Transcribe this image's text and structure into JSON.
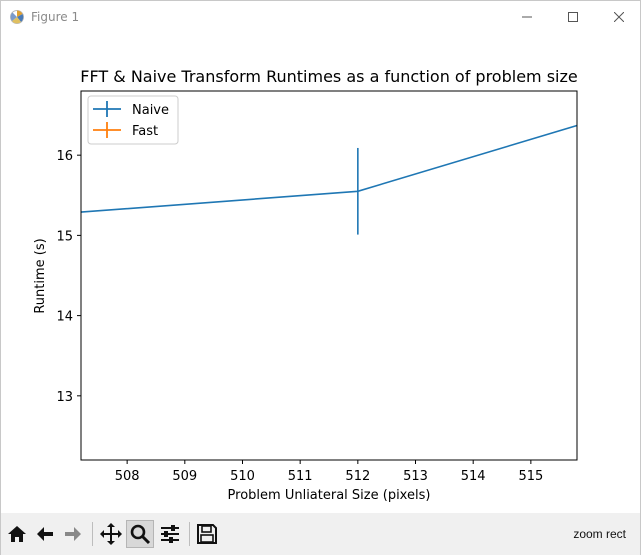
{
  "window": {
    "title": "Figure 1"
  },
  "toolbar": {
    "buttons": [
      {
        "name": "home-icon"
      },
      {
        "name": "back-arrow-icon"
      },
      {
        "name": "forward-arrow-icon"
      },
      {
        "name": "pan-icon"
      },
      {
        "name": "zoom-icon"
      },
      {
        "name": "configure-subplots-icon"
      },
      {
        "name": "save-icon"
      }
    ],
    "status": "zoom rect"
  },
  "colors": {
    "naive": "#1f77b4",
    "fast": "#ff7f0e"
  },
  "chart_data": {
    "type": "line",
    "title": "FFT & Naive Transform Runtimes as a function of problem size",
    "xlabel": "Problem Unliateral Size (pixels)",
    "ylabel": "Runtime (s)",
    "xlim": [
      507.2,
      515.8
    ],
    "ylim": [
      12.2,
      16.8
    ],
    "xticks": [
      508,
      509,
      510,
      511,
      512,
      513,
      514,
      515
    ],
    "yticks": [
      13,
      14,
      15,
      16
    ],
    "legend": "top-left",
    "grid": false,
    "series": [
      {
        "name": "Naive",
        "color": "#1f77b4",
        "points": [
          {
            "x": 507.2,
            "y": 15.29
          },
          {
            "x": 512,
            "y": 15.55,
            "err": 0.54
          },
          {
            "x": 515.8,
            "y": 16.37
          }
        ]
      },
      {
        "name": "Fast",
        "color": "#ff7f0e",
        "points": []
      }
    ]
  }
}
